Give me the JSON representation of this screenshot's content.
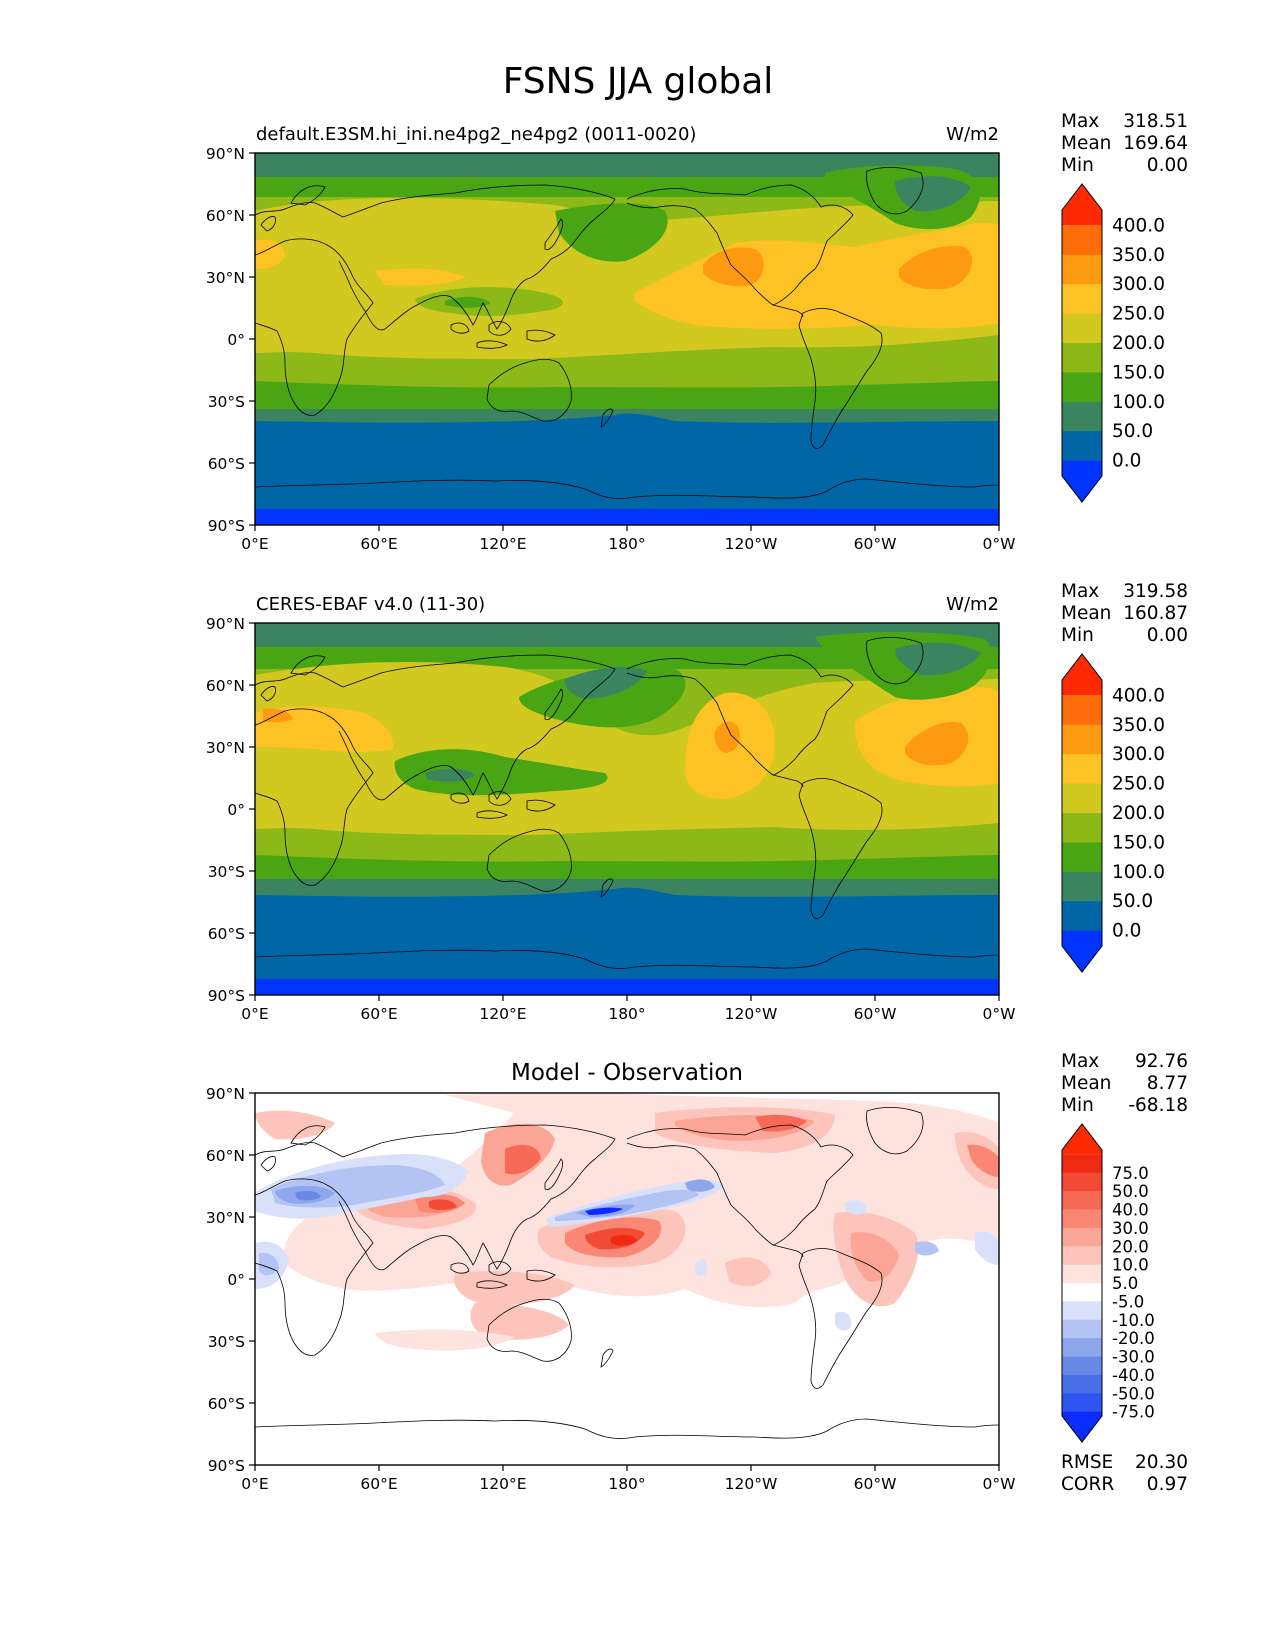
{
  "figure": {
    "title": "FSNS JJA global"
  },
  "axes": {
    "lat_ticks": [
      "90°N",
      "60°N",
      "30°N",
      "0°",
      "30°S",
      "60°S",
      "90°S"
    ],
    "lon_ticks": [
      "0°E",
      "60°E",
      "120°E",
      "180°",
      "120°W",
      "60°W",
      "0°W"
    ]
  },
  "panels": [
    {
      "id": "model",
      "left_title": "default.E3SM.hi_ini.ne4pg2_ne4pg2 (0011-0020)",
      "center_title": "",
      "units": "W/m2",
      "stats": [
        {
          "label": "Max",
          "value": "318.51"
        },
        {
          "label": "Mean",
          "value": "169.64"
        },
        {
          "label": "Min",
          "value": "0.00"
        }
      ],
      "colorbar": {
        "colors": [
          "#0033ff",
          "#0066a6",
          "#3a8560",
          "#4aa515",
          "#8cb918",
          "#d1c820",
          "#fdc324",
          "#fd9a12",
          "#fd6d09",
          "#ff2a00"
        ],
        "labels": [
          "0.0",
          "50.0",
          "100.0",
          "150.0",
          "200.0",
          "250.0",
          "300.0",
          "350.0",
          "400.0"
        ]
      },
      "footer_stats": []
    },
    {
      "id": "obs",
      "left_title": "CERES-EBAF v4.0 (11-30)",
      "center_title": "",
      "units": "W/m2",
      "stats": [
        {
          "label": "Max",
          "value": "319.58"
        },
        {
          "label": "Mean",
          "value": "160.87"
        },
        {
          "label": "Min",
          "value": "0.00"
        }
      ],
      "colorbar": {
        "colors": [
          "#0033ff",
          "#0066a6",
          "#3a8560",
          "#4aa515",
          "#8cb918",
          "#d1c820",
          "#fdc324",
          "#fd9a12",
          "#fd6d09",
          "#ff2a00"
        ],
        "labels": [
          "0.0",
          "50.0",
          "100.0",
          "150.0",
          "200.0",
          "250.0",
          "300.0",
          "350.0",
          "400.0"
        ]
      },
      "footer_stats": []
    },
    {
      "id": "diff",
      "left_title": "",
      "center_title": "Model - Observation",
      "units": "",
      "stats": [
        {
          "label": "Max",
          "value": "92.76"
        },
        {
          "label": "Mean",
          "value": "8.77"
        },
        {
          "label": "Min",
          "value": "-68.18"
        }
      ],
      "colorbar": {
        "colors": [
          "#0b2cff",
          "#2e55f2",
          "#4a6ee8",
          "#6a89e6",
          "#8ea6ec",
          "#b3c3f3",
          "#d9e1fa",
          "#ffffff",
          "#fde2dd",
          "#fcc4ba",
          "#fba596",
          "#f98774",
          "#f66a55",
          "#f24a34",
          "#ee2a12",
          "#ff2a00"
        ],
        "labels": [
          "-75.0",
          "-50.0",
          "-40.0",
          "-30.0",
          "-20.0",
          "-10.0",
          "-5.0",
          "5.0",
          "10.0",
          "20.0",
          "30.0",
          "40.0",
          "50.0",
          "75.0"
        ]
      },
      "footer_stats": [
        {
          "label": "RMSE",
          "value": "20.30"
        },
        {
          "label": "CORR",
          "value": "0.97"
        }
      ]
    }
  ]
}
